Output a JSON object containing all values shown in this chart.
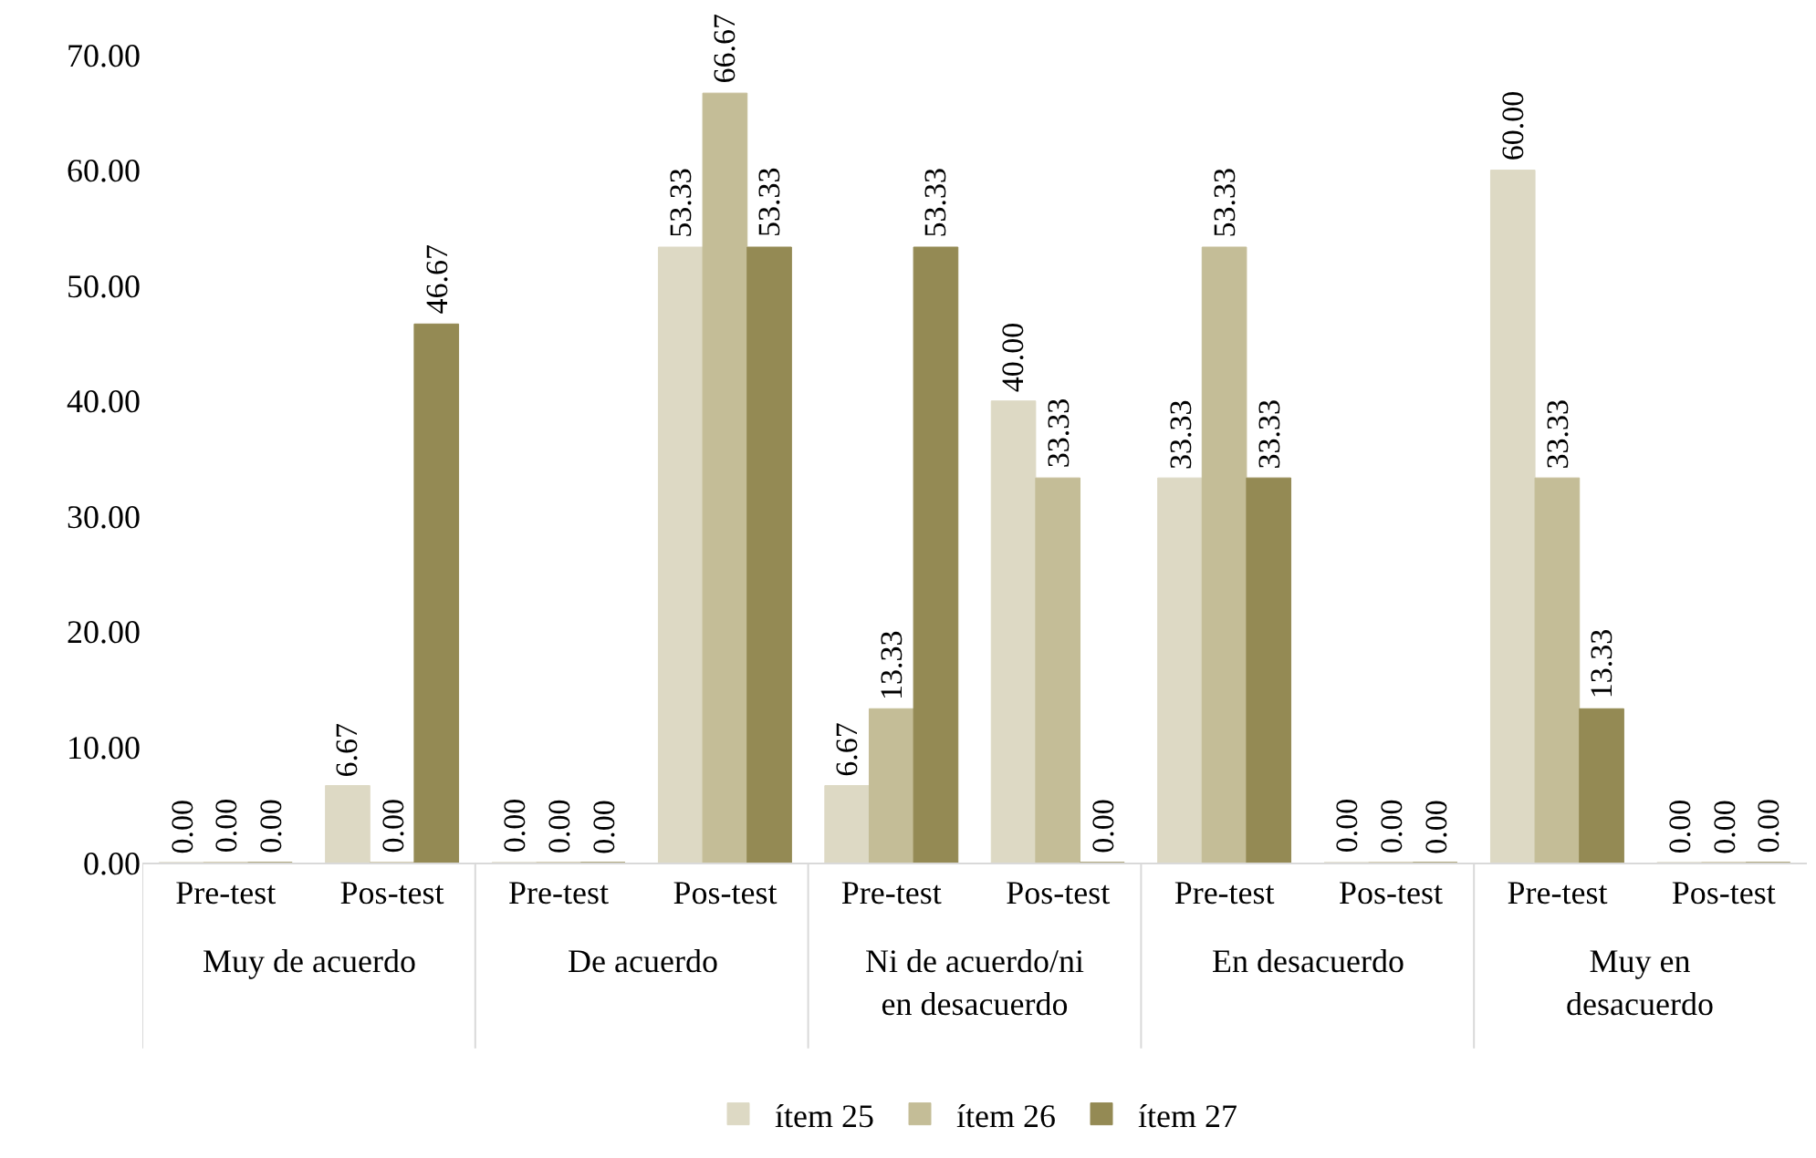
{
  "chart_data": {
    "type": "bar",
    "categories": [
      "Pre-test",
      "Pos-test",
      "Pre-test",
      "Pos-test",
      "Pre-test",
      "Pos-test",
      "Pre-test",
      "Pos-test",
      "Pre-test",
      "Pos-test"
    ],
    "annotations": [
      "Muy de acuerdo",
      "De acuerdo",
      "Ni de acuerdo/ni en desacuerdo",
      "En desacuerdo",
      "Muy en desacuerdo"
    ],
    "series": [
      {
        "name": "ítem 25",
        "color": "#ddd9c4",
        "values": [
          0,
          6.67,
          0,
          53.33,
          6.67,
          40.0,
          33.33,
          0,
          60.0,
          0
        ],
        "value_labels": [
          "0.00",
          "6.67",
          "0.00",
          "53.33",
          "6.67",
          "40.00",
          "33.33",
          "0.00",
          "60.00",
          "0.00"
        ]
      },
      {
        "name": "ítem 26",
        "color": "#c4bd97",
        "values": [
          0,
          0,
          0,
          66.67,
          13.33,
          33.33,
          53.33,
          0,
          33.33,
          0
        ],
        "value_labels": [
          "0.00",
          "0.00",
          "0.00",
          "66.67",
          "13.33",
          "33.33",
          "53.33",
          "0.00",
          "33.33",
          "0.00"
        ]
      },
      {
        "name": "ítem 27",
        "color": "#948a54",
        "values": [
          0,
          46.67,
          0,
          53.33,
          53.33,
          0,
          33.33,
          0,
          13.33,
          0
        ],
        "value_labels": [
          "0.00",
          "46.67",
          "0.00",
          "53.33",
          "53.33",
          "0.00",
          "33.33",
          "0.00",
          "13.33",
          "0.00"
        ]
      }
    ],
    "ylim": [
      0,
      70
    ],
    "yticks": [
      {
        "value": 0,
        "label": "0.00"
      },
      {
        "value": 10,
        "label": "10.00"
      },
      {
        "value": 20,
        "label": "20.00"
      },
      {
        "value": 30,
        "label": "30.00"
      },
      {
        "value": 40,
        "label": "40.00"
      },
      {
        "value": 50,
        "label": "50.00"
      },
      {
        "value": 60,
        "label": "60.00"
      },
      {
        "value": 70,
        "label": "70.00"
      }
    ],
    "legend": "bottom"
  }
}
